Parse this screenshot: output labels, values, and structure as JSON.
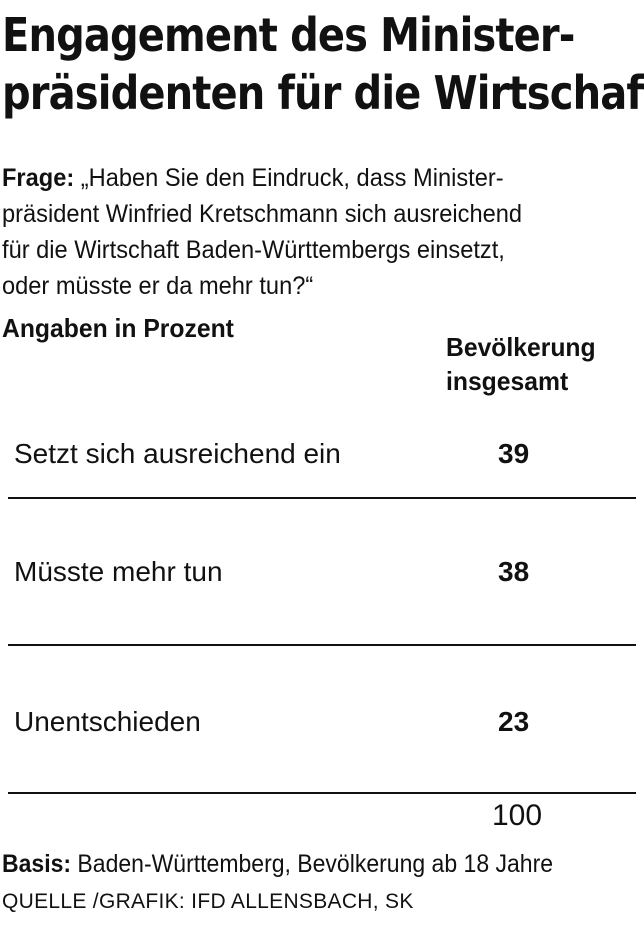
{
  "chart_data": {
    "type": "table",
    "title_line1": "Engagement des Minister-",
    "title_line2": "präsidenten für die Wirtschaft",
    "question_label": "Frage:",
    "question_line1": "„Haben Sie den Eindruck, dass Minister-",
    "question_line2": "präsident Winfried Kretschmann sich ausreichend",
    "question_line3": "für die Wirtschaft Baden-Württembergs einsetzt,",
    "question_line4": "oder müsste er da mehr tun?“",
    "unit_label": "Angaben in Prozent",
    "column_header_line1": "Bevölkerung",
    "column_header_line2": "insgesamt",
    "rows": [
      {
        "label": "Setzt sich ausreichend ein",
        "value": "39"
      },
      {
        "label": "Müsste mehr tun",
        "value": "38"
      },
      {
        "label": "Unentschieden",
        "value": "23"
      }
    ],
    "total": "100",
    "basis_label": "Basis:",
    "basis_text": " Baden-Württemberg, Bevölkerung ab 18 Jahre",
    "source": "QUELLE /GRAFIK: IFD ALLENSBACH, SK"
  }
}
